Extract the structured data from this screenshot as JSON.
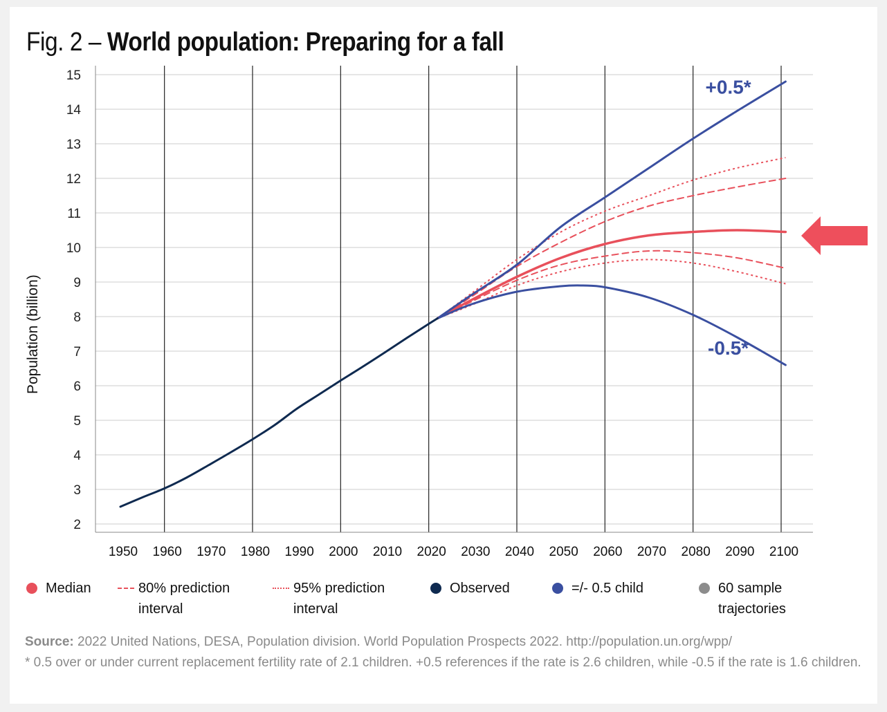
{
  "title": {
    "prefix": "Fig. 2 – ",
    "main": "World population: Preparing for a fall"
  },
  "colors": {
    "median": "#e8505b",
    "observed": "#0f2a50",
    "variant": "#3a4fa0",
    "sample": "#8c8c8c",
    "grid": "#cccccc",
    "arrow": "#ee4f5c"
  },
  "chart_data": {
    "type": "line",
    "title": "World population: Preparing for a fall",
    "xlabel": "",
    "ylabel": "Population (billion)",
    "xlim": [
      1945,
      2106
    ],
    "ylim": [
      2,
      15
    ],
    "x_ticks": [
      1950,
      1960,
      1970,
      1980,
      1990,
      2000,
      2010,
      2020,
      2030,
      2040,
      2050,
      2060,
      2070,
      2080,
      2090,
      2100
    ],
    "y_ticks": [
      2,
      3,
      4,
      5,
      6,
      7,
      8,
      9,
      10,
      11,
      12,
      13,
      14,
      15
    ],
    "vertical_gridlines": [
      1960,
      1980,
      2000,
      2020,
      2040,
      2060,
      2080,
      2100
    ],
    "series": [
      {
        "name": "Observed",
        "style": "solid",
        "color": "#0f2a50",
        "points": [
          [
            1950,
            2.5
          ],
          [
            1955,
            2.77
          ],
          [
            1960,
            3.03
          ],
          [
            1965,
            3.34
          ],
          [
            1970,
            3.7
          ],
          [
            1975,
            4.07
          ],
          [
            1980,
            4.45
          ],
          [
            1985,
            4.86
          ],
          [
            1990,
            5.33
          ],
          [
            1995,
            5.74
          ],
          [
            2000,
            6.15
          ],
          [
            2005,
            6.55
          ],
          [
            2010,
            6.96
          ],
          [
            2015,
            7.38
          ],
          [
            2020,
            7.79
          ],
          [
            2022,
            7.95
          ]
        ]
      },
      {
        "name": "+0.5*",
        "style": "solid",
        "color": "#3a4fa0",
        "points": [
          [
            2022,
            7.95
          ],
          [
            2030,
            8.65
          ],
          [
            2040,
            9.5
          ],
          [
            2050,
            10.6
          ],
          [
            2060,
            11.45
          ],
          [
            2070,
            12.3
          ],
          [
            2080,
            13.15
          ],
          [
            2090,
            13.95
          ],
          [
            2101,
            14.8
          ]
        ]
      },
      {
        "name": "-0.5*",
        "style": "solid",
        "color": "#3a4fa0",
        "points": [
          [
            2022,
            7.95
          ],
          [
            2030,
            8.37
          ],
          [
            2040,
            8.72
          ],
          [
            2050,
            8.88
          ],
          [
            2055,
            8.9
          ],
          [
            2060,
            8.85
          ],
          [
            2070,
            8.55
          ],
          [
            2080,
            8.05
          ],
          [
            2090,
            7.4
          ],
          [
            2101,
            6.6
          ]
        ]
      },
      {
        "name": "Median",
        "style": "solid",
        "color": "#e8505b",
        "points": [
          [
            2022,
            7.95
          ],
          [
            2030,
            8.5
          ],
          [
            2040,
            9.15
          ],
          [
            2050,
            9.7
          ],
          [
            2060,
            10.1
          ],
          [
            2070,
            10.35
          ],
          [
            2080,
            10.45
          ],
          [
            2090,
            10.5
          ],
          [
            2101,
            10.45
          ]
        ]
      },
      {
        "name": "80% prediction interval (upper)",
        "style": "dashed",
        "color": "#e8505b",
        "points": [
          [
            2022,
            7.95
          ],
          [
            2030,
            8.6
          ],
          [
            2040,
            9.45
          ],
          [
            2050,
            10.15
          ],
          [
            2060,
            10.75
          ],
          [
            2070,
            11.2
          ],
          [
            2080,
            11.5
          ],
          [
            2090,
            11.75
          ],
          [
            2101,
            12.0
          ]
        ]
      },
      {
        "name": "80% prediction interval (lower)",
        "style": "dashed",
        "color": "#e8505b",
        "points": [
          [
            2022,
            7.95
          ],
          [
            2030,
            8.45
          ],
          [
            2040,
            9.05
          ],
          [
            2050,
            9.5
          ],
          [
            2060,
            9.75
          ],
          [
            2070,
            9.9
          ],
          [
            2080,
            9.85
          ],
          [
            2090,
            9.7
          ],
          [
            2101,
            9.4
          ]
        ]
      },
      {
        "name": "95% prediction interval (upper)",
        "style": "dotted",
        "color": "#e8505b",
        "points": [
          [
            2022,
            7.95
          ],
          [
            2030,
            8.7
          ],
          [
            2040,
            9.65
          ],
          [
            2050,
            10.45
          ],
          [
            2060,
            11.05
          ],
          [
            2070,
            11.5
          ],
          [
            2080,
            11.95
          ],
          [
            2090,
            12.3
          ],
          [
            2101,
            12.6
          ]
        ]
      },
      {
        "name": "95% prediction interval (lower)",
        "style": "dotted",
        "color": "#e8505b",
        "points": [
          [
            2022,
            7.95
          ],
          [
            2030,
            8.35
          ],
          [
            2040,
            8.9
          ],
          [
            2050,
            9.3
          ],
          [
            2060,
            9.55
          ],
          [
            2070,
            9.65
          ],
          [
            2080,
            9.55
          ],
          [
            2090,
            9.3
          ],
          [
            2101,
            8.95
          ]
        ]
      }
    ],
    "annotations": [
      {
        "text": "+0.5*",
        "x": 2088,
        "y": 14.45
      },
      {
        "text": "-0.5*",
        "x": 2088,
        "y": 6.9
      }
    ]
  },
  "y_axis_label": "Population (billion)",
  "legend": [
    {
      "key": "median",
      "line1": "Median",
      "line2": "",
      "swatch": "dot",
      "color": "#e8505b"
    },
    {
      "key": "pi80",
      "line1": "80% prediction",
      "line2": "interval",
      "swatch": "dashed",
      "color": "#e8505b"
    },
    {
      "key": "pi95",
      "line1": "95% prediction",
      "line2": "interval",
      "swatch": "dotted",
      "color": "#e8505b"
    },
    {
      "key": "observed",
      "line1": "Observed",
      "line2": "",
      "swatch": "dot",
      "color": "#0f2a50"
    },
    {
      "key": "variant",
      "line1": "=/- 0.5 child",
      "line2": "",
      "swatch": "dot",
      "color": "#3a4fa0"
    },
    {
      "key": "samples",
      "line1": "60 sample",
      "line2": "trajectories",
      "swatch": "dot",
      "color": "#8c8c8c"
    }
  ],
  "source": {
    "label": "Source:",
    "text": " 2022 United Nations, DESA, Population division. World Population Prospects 2022. http://population.un.org/wpp/",
    "note": "* 0.5 over or under current replacement fertility rate of 2.1 children. +0.5 references if the rate is 2.6 children, while -0.5 if the rate is 1.6 children."
  }
}
